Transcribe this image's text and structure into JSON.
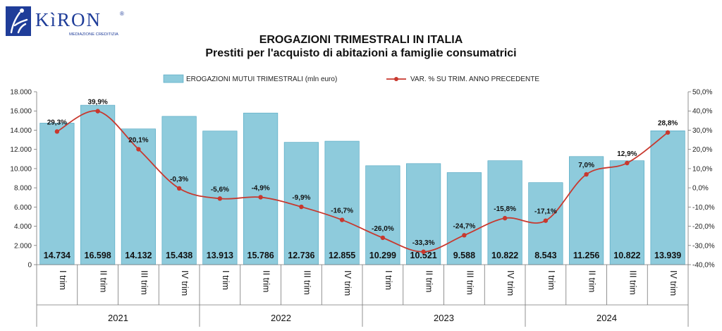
{
  "logo": {
    "brand": "KìRON",
    "tagline": "MEDIAZIONE CREDITIZIA",
    "registered": "®",
    "colors": {
      "blue": "#1f3d99",
      "box": "#1f3d99"
    }
  },
  "chart_data": {
    "type": "bar",
    "title": "EROGAZIONI TRIMESTRALI IN ITALIA",
    "subtitle": "Prestiti per l'acquisto di abitazioni a famiglie consumatrici",
    "categories": [
      "I trim",
      "II trim",
      "III trim",
      "IV trim",
      "I trim",
      "II trim",
      "III trim",
      "IV trim",
      "I trim",
      "II trim",
      "III trim",
      "IV trim",
      "I trim",
      "II trim",
      "III trim",
      "IV trim"
    ],
    "years": [
      "2021",
      "2022",
      "2023",
      "2024"
    ],
    "series": [
      {
        "name": "EROGAZIONI MUTUI TRIMESTRALI (mln euro)",
        "kind": "bar",
        "axis": "left",
        "color": "#8ecbdc",
        "values": [
          14734,
          16598,
          14132,
          15438,
          13913,
          15786,
          12736,
          12855,
          10299,
          10521,
          9588,
          10822,
          8543,
          11256,
          10822,
          13939
        ],
        "labels": [
          "14.734",
          "16.598",
          "14.132",
          "15.438",
          "13.913",
          "15.786",
          "12.736",
          "12.855",
          "10.299",
          "10.521",
          "9.588",
          "10.822",
          "8.543",
          "11.256",
          "10.822",
          "13.939"
        ]
      },
      {
        "name": "VAR. % SU TRIM. ANNO PRECEDENTE",
        "kind": "line",
        "axis": "right",
        "color": "#c8382e",
        "values": [
          29.3,
          39.9,
          20.1,
          -0.3,
          -5.6,
          -4.9,
          -9.9,
          -16.7,
          -26.0,
          -33.3,
          -24.7,
          -15.8,
          -17.1,
          7.0,
          12.9,
          28.8
        ],
        "labels": [
          "29,3%",
          "39,9%",
          "20,1%",
          "-0,3%",
          "-5,6%",
          "-4,9%",
          "-9,9%",
          "-16,7%",
          "-26,0%",
          "-33,3%",
          "-24,7%",
          "-15,8%",
          "-17,1%",
          "7,0%",
          "12,9%",
          "28,8%"
        ]
      }
    ],
    "ylim_left": [
      0,
      18000
    ],
    "ylim_right": [
      -40,
      50
    ],
    "yticks_left": [
      "0",
      "2.000",
      "4.000",
      "6.000",
      "8.000",
      "10.000",
      "12.000",
      "14.000",
      "16.000",
      "18.000"
    ],
    "yticks_right": [
      "-40,0%",
      "-30,0%",
      "-20,0%",
      "-10,0%",
      "0,0%",
      "10,0%",
      "20,0%",
      "30,0%",
      "40,0%",
      "50,0%"
    ],
    "legend_position": "top-center",
    "grid": false
  }
}
